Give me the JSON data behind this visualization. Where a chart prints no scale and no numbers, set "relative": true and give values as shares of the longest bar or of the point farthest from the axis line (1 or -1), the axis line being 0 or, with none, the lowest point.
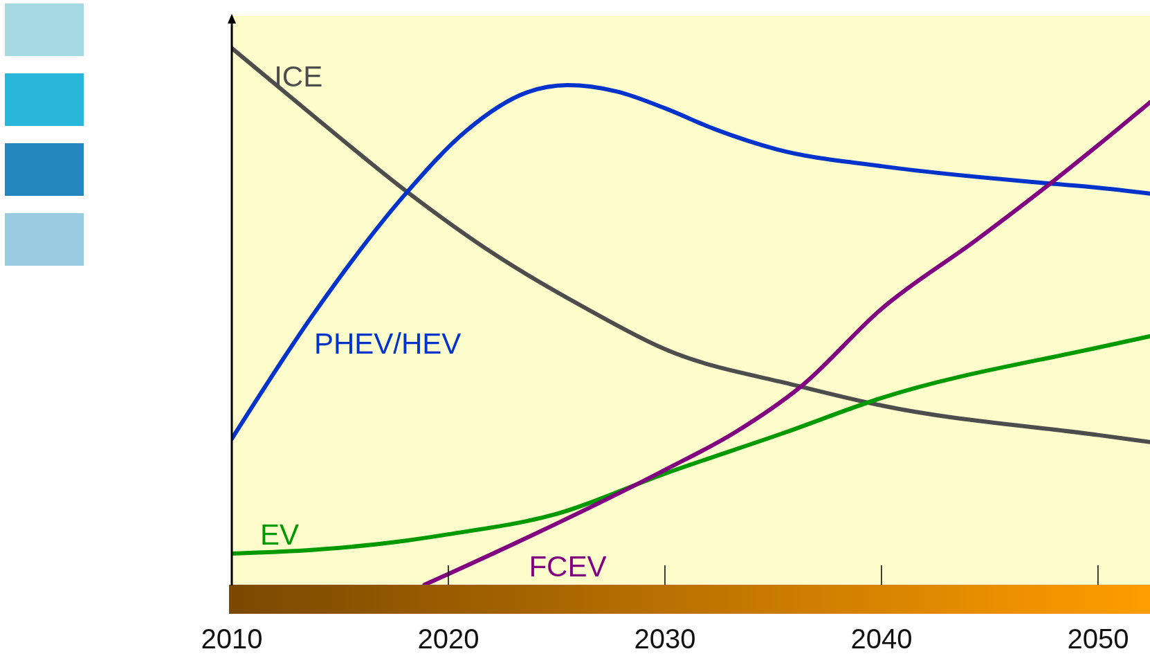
{
  "chart_data": {
    "type": "line",
    "relative": true,
    "xlim": [
      2010,
      2052.4
    ],
    "xticks": [
      2010,
      2020,
      2030,
      2040,
      2050
    ],
    "grid": false,
    "legend": false,
    "marker": "none",
    "line_style": "solid",
    "series": [
      {
        "name": "ICE",
        "color": "#4d4d4d",
        "x": [
          2010,
          2014.0,
          2018.1,
          2022.2,
          2026.4,
          2030,
          2036.2,
          2040,
          2050,
          2052.4
        ],
        "values": [
          1.0,
          0.866,
          0.732,
          0.614,
          0.514,
          0.439,
          0.37,
          0.334,
          0.279,
          0.266
        ]
      },
      {
        "name": "PHEV/HEV",
        "color": "#0033cc",
        "x": [
          2010,
          2013.8,
          2018.1,
          2020.8,
          2023.6,
          2025.5,
          2027.8,
          2030,
          2032.3,
          2035.2,
          2040,
          2047.7,
          2050,
          2052.4
        ],
        "values": [
          0.272,
          0.506,
          0.732,
          0.845,
          0.917,
          0.931,
          0.919,
          0.888,
          0.849,
          0.811,
          0.78,
          0.748,
          0.74,
          0.729
        ]
      },
      {
        "name": "EV",
        "color": "#009900",
        "x": [
          2010,
          2013.8,
          2018,
          2020,
          2025,
          2030,
          2035.5,
          2040,
          2050,
          2052.4
        ],
        "values": [
          0.058,
          0.065,
          0.082,
          0.094,
          0.132,
          0.207,
          0.283,
          0.348,
          0.442,
          0.463
        ]
      },
      {
        "name": "FCEV",
        "color": "#800080",
        "x": [
          2018.9,
          2020,
          2025,
          2030,
          2033.2,
          2036.3,
          2040,
          2044.4,
          2047.9,
          2050,
          2052.4
        ],
        "values": [
          0,
          0.02,
          0.114,
          0.214,
          0.283,
          0.37,
          0.514,
          0.643,
          0.751,
          0.819,
          0.899
        ]
      }
    ]
  }
}
